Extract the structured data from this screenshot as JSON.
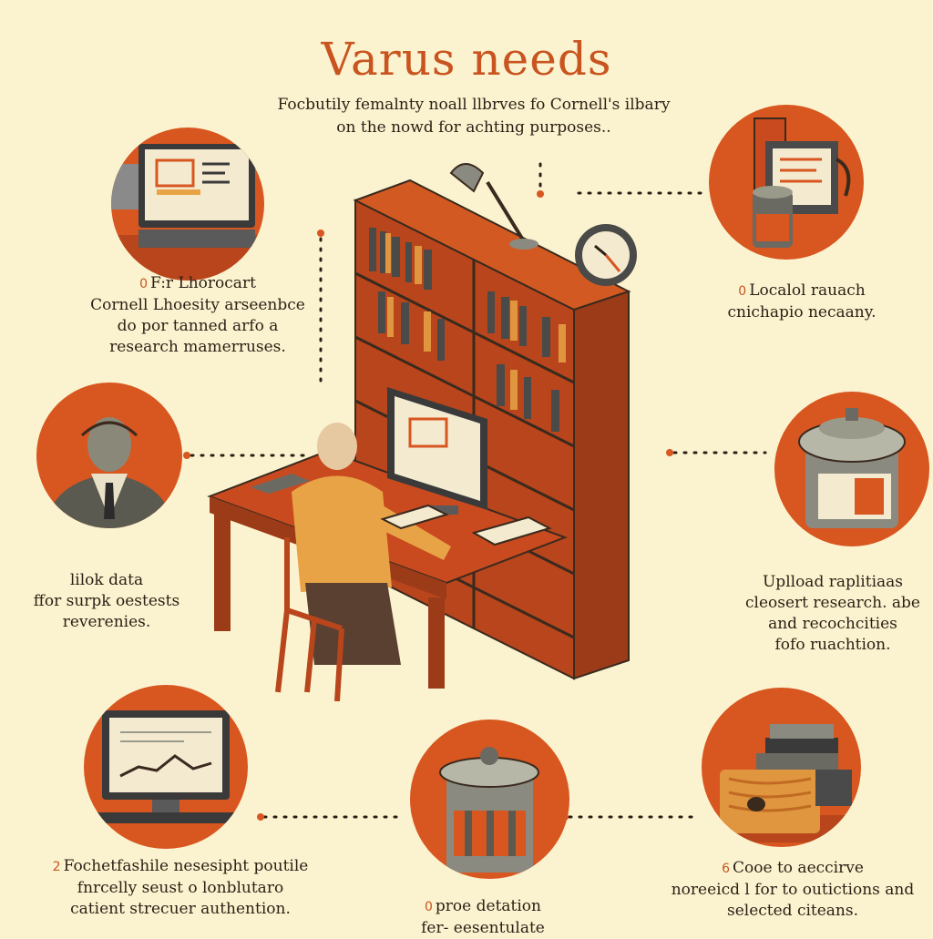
{
  "title": "Varus needs",
  "subtitle": "Focbutily femalnty noall llbrves fo Cornell's ilbary on the nowd for achting purposes..",
  "captions": {
    "top_left": {
      "marker": "0",
      "lines": [
        "F:r Lhorocart",
        "Cornell Lhoesity arseenbce",
        "do por tanned arfo a",
        "research mamerruses."
      ]
    },
    "top_right": {
      "marker": "0",
      "lines": [
        "Localol rauach",
        "cnichapio necaany."
      ]
    },
    "mid_left": {
      "lines": [
        "lilok data",
        "ffor surpk oestests",
        "reverenies."
      ]
    },
    "mid_right": {
      "lines": [
        "Uplload raplitiaas",
        "cleosert research. abe",
        "and recochcities",
        "fofo ruachtion."
      ]
    },
    "bottom_left": {
      "marker": "2",
      "lines": [
        "Fochetfashile nesesipht poutile",
        "fnrcelly seust o lonblutaro",
        "catient strecuer authention."
      ]
    },
    "bottom_center": {
      "marker": "0",
      "lines": [
        "proe detation",
        "fer- eesentulate"
      ]
    },
    "bottom_right": {
      "marker": "6",
      "lines": [
        "Cooe to aeccirve",
        "noreeicd l for to outictions and",
        "selected citeans."
      ]
    }
  },
  "icons": {
    "top_left": "computer-monitor-icon",
    "top_right": "archive-equipment-icon",
    "mid_left": "researcher-portrait-icon",
    "mid_right": "storage-canister-icon",
    "bottom_left": "data-chart-monitor-icon",
    "bottom_center": "trash-bin-icon",
    "bottom_right": "book-stack-icon",
    "center": "library-desk-illustration"
  },
  "colors": {
    "background": "#fbf3cf",
    "accent": "#d8561f",
    "wood": "#b8451c",
    "text": "#2b1f16"
  }
}
